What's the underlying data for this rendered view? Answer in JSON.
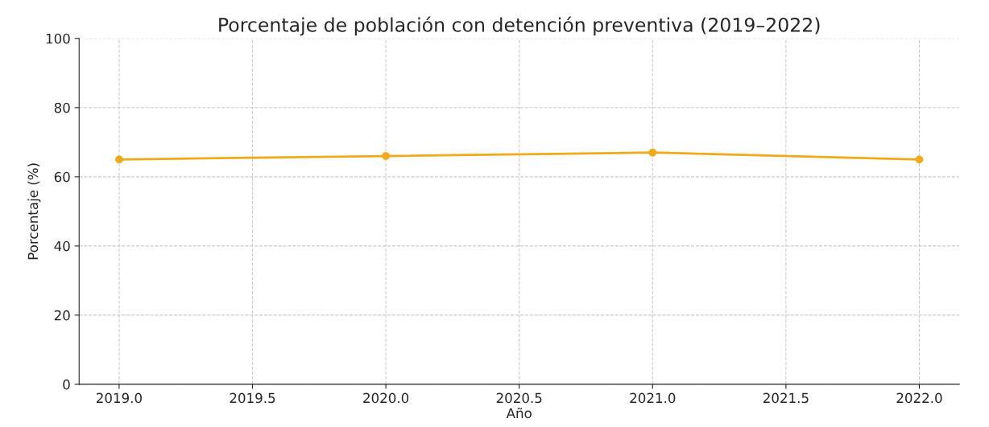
{
  "chart_data": {
    "type": "line",
    "title": "Porcentaje de población con detención preventiva (2019–2022)",
    "xlabel": "Año",
    "ylabel": "Porcentaje (%)",
    "x": [
      2019,
      2020,
      2021,
      2022
    ],
    "series": [
      {
        "color": "#f2a918",
        "values": [
          65,
          66,
          67,
          65
        ]
      }
    ],
    "xlim": [
      2018.85,
      2022.15
    ],
    "xticks": [
      {
        "value": 2019,
        "label": "2019.0"
      },
      {
        "value": 2019.5,
        "label": "2019.5"
      },
      {
        "value": 2020,
        "label": "2020.0"
      },
      {
        "value": 2020.5,
        "label": "2020.5"
      },
      {
        "value": 2021,
        "label": "2021.0"
      },
      {
        "value": 2021.5,
        "label": "2021.5"
      },
      {
        "value": 2022,
        "label": "2022.0"
      }
    ],
    "ylim": [
      0,
      100
    ],
    "yticks": [
      0,
      20,
      40,
      60,
      80,
      100
    ],
    "grid": true,
    "marker": "circle",
    "line_style": "solid"
  }
}
